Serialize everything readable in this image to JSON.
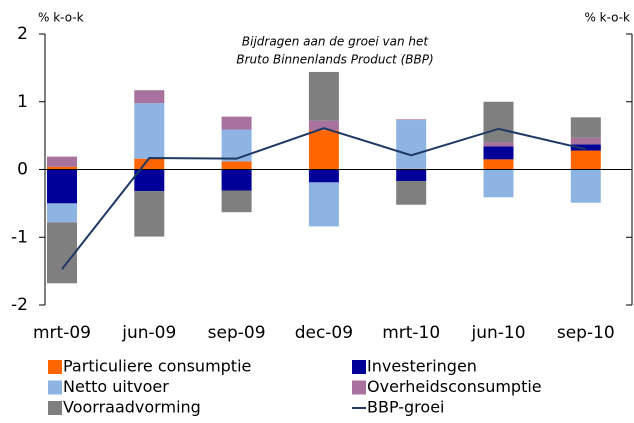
{
  "chart_data": {
    "type": "bar",
    "stacked": true,
    "title": [
      "Bijdragen aan de groei van het",
      "Bruto Binnenlands Product (BBP)"
    ],
    "ylabel": "% k-o-k",
    "y2label": "% k-o-k",
    "categories": [
      "mrt-09",
      "jun-09",
      "sep-09",
      "dec-09",
      "mrt-10",
      "jun-10",
      "sep-10"
    ],
    "ylim": [
      -2,
      2
    ],
    "yticks": [
      -2,
      -1,
      0,
      1,
      2
    ],
    "series": [
      {
        "name": "Particuliere consumptie",
        "color": "#ff6600",
        "values": [
          0.04,
          0.16,
          0.12,
          0.58,
          0.01,
          0.15,
          0.28
        ]
      },
      {
        "name": "Investeringen",
        "color": "#000099",
        "values": [
          -0.5,
          -0.32,
          -0.31,
          -0.19,
          -0.17,
          0.19,
          0.09
        ]
      },
      {
        "name": "Netto uitvoer",
        "color": "#8eb4e3",
        "values": [
          -0.28,
          0.82,
          0.47,
          -0.65,
          0.72,
          -0.41,
          -0.49
        ]
      },
      {
        "name": "Overheidsconsumptie",
        "color": "#a8719e",
        "values": [
          0.15,
          0.19,
          0.19,
          0.14,
          0.01,
          0.06,
          0.1
        ]
      },
      {
        "name": "Voorraadvorming",
        "color": "#7f7f7f",
        "values": [
          -0.9,
          -0.67,
          -0.32,
          0.72,
          -0.35,
          0.6,
          0.3
        ]
      },
      {
        "name": "BBP-groei",
        "type": "line",
        "color": "#1f3864",
        "values": [
          -1.47,
          0.17,
          0.16,
          0.61,
          0.21,
          0.6,
          0.3
        ]
      }
    ]
  }
}
